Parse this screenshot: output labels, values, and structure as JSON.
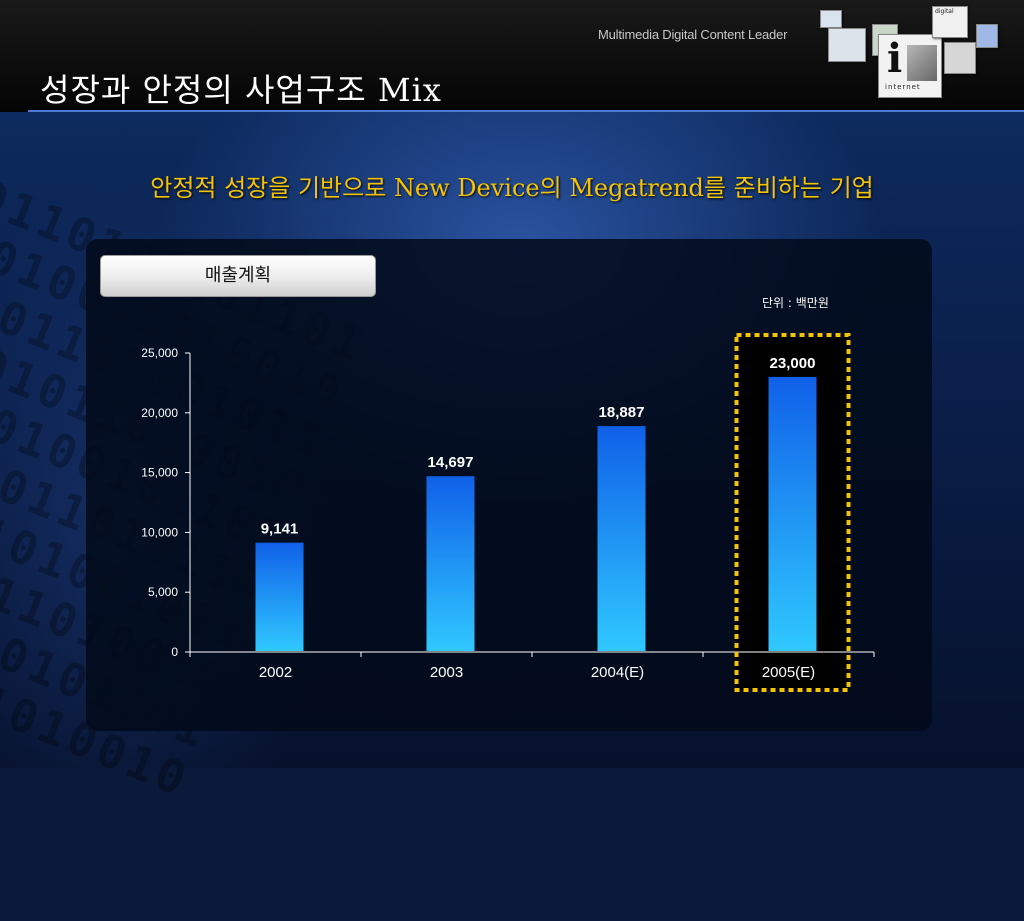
{
  "header": {
    "tagline": "Multimedia Digital Content Leader",
    "title": "성장과 안정의 사업구조 Mix",
    "logo_words": [
      "digital",
      "internet"
    ]
  },
  "subtitle": "안정적 성장을 기반으로 New Device의 Megatrend를 준비하는 기업",
  "section_button": "매출계획",
  "unit_note": "단위 : 백만원",
  "colors": {
    "accent_title": "#f5c400",
    "bar_top": "#1060e8",
    "bar_bottom": "#30c8ff",
    "highlight_border": "#f5c400"
  },
  "chart_data": {
    "type": "bar",
    "categories": [
      "2002",
      "2003",
      "2004(E)",
      "2005(E)"
    ],
    "values": [
      9141,
      14697,
      18887,
      23000
    ],
    "value_labels": [
      "9,141",
      "14,697",
      "18,887",
      "23,000"
    ],
    "ylim": [
      0,
      25000
    ],
    "yticks": [
      0,
      5000,
      10000,
      15000,
      20000,
      25000
    ],
    "ytick_labels": [
      "0",
      "5,000",
      "10,000",
      "15,000",
      "20,000",
      "25,000"
    ],
    "highlighted_category": "2005(E)",
    "grid": false,
    "legend": "none"
  }
}
